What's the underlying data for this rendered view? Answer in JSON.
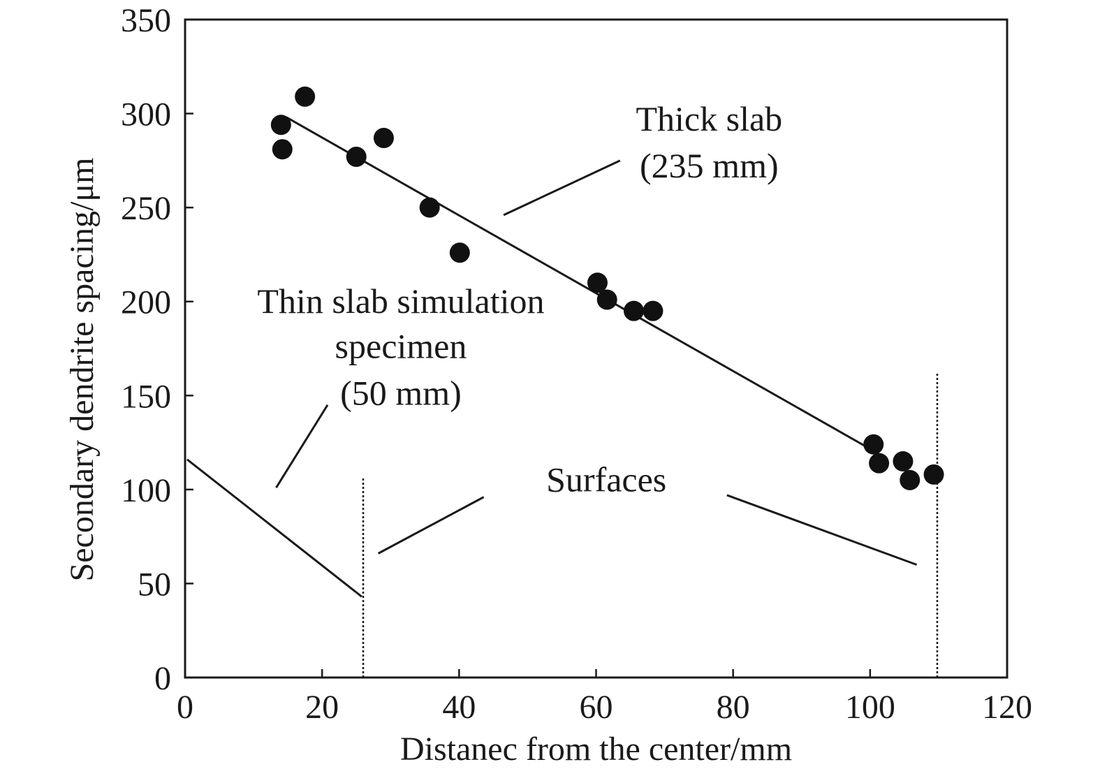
{
  "chart_data": {
    "type": "scatter",
    "xlabel": "Distanec from the center/mm",
    "ylabel": "Secondary dendrite spacing/μm",
    "xlim": [
      0,
      120
    ],
    "ylim": [
      0,
      350
    ],
    "xticks": [
      0,
      20,
      40,
      60,
      80,
      100,
      120
    ],
    "yticks": [
      0,
      50,
      100,
      150,
      200,
      250,
      300,
      350
    ],
    "grid": false,
    "points": [
      {
        "x": 14,
        "y": 294
      },
      {
        "x": 14.2,
        "y": 281
      },
      {
        "x": 17.5,
        "y": 309
      },
      {
        "x": 25,
        "y": 277
      },
      {
        "x": 29,
        "y": 287
      },
      {
        "x": 35.7,
        "y": 250
      },
      {
        "x": 40.1,
        "y": 226
      },
      {
        "x": 60.2,
        "y": 210
      },
      {
        "x": 61.6,
        "y": 201
      },
      {
        "x": 65.5,
        "y": 195
      },
      {
        "x": 68.3,
        "y": 195
      },
      {
        "x": 100.5,
        "y": 124
      },
      {
        "x": 101.3,
        "y": 114
      },
      {
        "x": 104.8,
        "y": 115
      },
      {
        "x": 105.8,
        "y": 105
      },
      {
        "x": 109.3,
        "y": 108
      }
    ],
    "fit_lines": [
      {
        "x": [
          14.8,
          100.3
        ],
        "y": [
          298,
          121
        ]
      },
      {
        "x": [
          0.3,
          25.8
        ],
        "y": [
          116,
          43
        ]
      }
    ],
    "surface_lines": [
      {
        "x": 26,
        "y": [
          0,
          106
        ]
      },
      {
        "x": 109.8,
        "y": [
          0,
          162
        ]
      }
    ],
    "annotations": [
      {
        "lines": [
          "Thick slab",
          "(235 mm)"
        ],
        "x": 76.5,
        "y": [
          291,
          266
        ]
      },
      {
        "lines": [
          "Thin slab simulation",
          "specimen",
          "(50 mm)"
        ],
        "x": 31.5,
        "y": [
          194,
          170,
          145
        ]
      },
      {
        "lines": [
          "Surfaces"
        ],
        "x": 61.5,
        "y": [
          99
        ]
      }
    ],
    "leader_lines": [
      {
        "x": [
          46.5,
          63.5
        ],
        "y": [
          246,
          275
        ]
      },
      {
        "x": [
          13.3,
          20.8
        ],
        "y": [
          101,
          145
        ]
      },
      {
        "x": [
          28.2,
          43.6
        ],
        "y": [
          66,
          96
        ]
      },
      {
        "x": [
          79.1,
          106.8
        ],
        "y": [
          97,
          60
        ]
      }
    ]
  }
}
